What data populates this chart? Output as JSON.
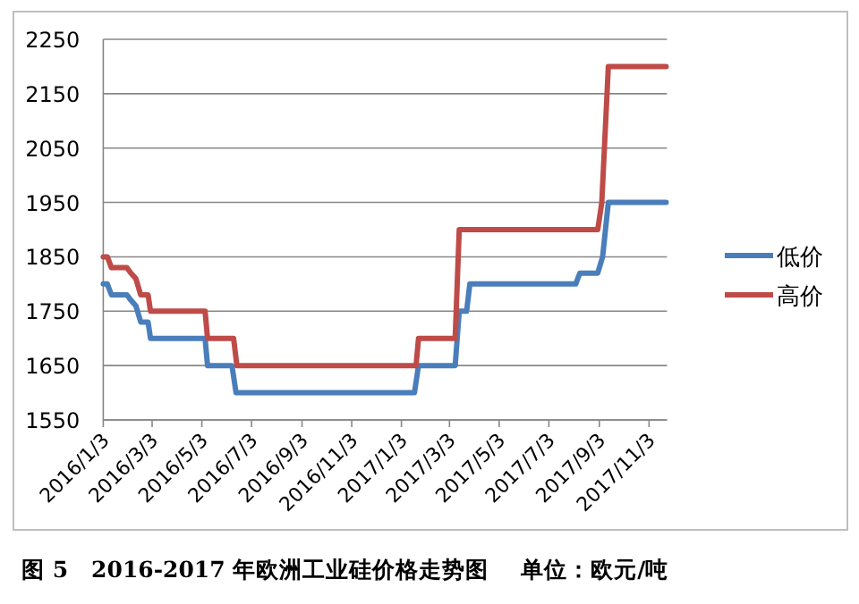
{
  "chart_data": {
    "type": "line",
    "title": "图 5　2016-2017 年欧洲工业硅价格走势图",
    "annotations": [
      "单位：欧元/吨"
    ],
    "xlim": [
      "2016-01-03",
      "2017-11-25"
    ],
    "ylim": [
      1550,
      2250
    ],
    "xticks": [
      {
        "value": "2016-01-03",
        "label": "2016/1/3"
      },
      {
        "value": "2016-03-03",
        "label": "2016/3/3"
      },
      {
        "value": "2016-05-03",
        "label": "2016/5/3"
      },
      {
        "value": "2016-07-03",
        "label": "2016/7/3"
      },
      {
        "value": "2016-09-03",
        "label": "2016/9/3"
      },
      {
        "value": "2016-11-03",
        "label": "2016/11/3"
      },
      {
        "value": "2017-01-03",
        "label": "2017/1/3"
      },
      {
        "value": "2017-03-03",
        "label": "2017/3/3"
      },
      {
        "value": "2017-05-03",
        "label": "2017/5/3"
      },
      {
        "value": "2017-07-03",
        "label": "2017/7/3"
      },
      {
        "value": "2017-09-03",
        "label": "2017/9/3"
      },
      {
        "value": "2017-11-03",
        "label": "2017/11/3"
      }
    ],
    "yticks": [
      1550,
      1650,
      1750,
      1850,
      1950,
      2050,
      2150,
      2250
    ],
    "grid": "y",
    "legend": "right",
    "marker": "none",
    "line_style": "solid",
    "series": [
      {
        "name": "低价",
        "color": "#4a7ebb",
        "x": [
          "2016-01-03",
          "2016-01-08",
          "2016-01-13",
          "2016-02-01",
          "2016-02-06",
          "2016-02-12",
          "2016-02-18",
          "2016-02-27",
          "2016-03-01",
          "2016-05-07",
          "2016-05-10",
          "2016-06-09",
          "2016-06-14",
          "2017-01-19",
          "2017-01-24",
          "2017-03-10",
          "2017-03-15",
          "2017-03-24",
          "2017-03-28",
          "2017-08-05",
          "2017-08-10",
          "2017-09-01",
          "2017-09-07",
          "2017-09-14",
          "2017-11-24"
        ],
        "values": [
          1800,
          1800,
          1780,
          1780,
          1770,
          1760,
          1730,
          1730,
          1700,
          1700,
          1650,
          1650,
          1600,
          1600,
          1650,
          1650,
          1750,
          1750,
          1800,
          1800,
          1820,
          1820,
          1850,
          1950,
          1950
        ]
      },
      {
        "name": "高价",
        "color": "#be4b48",
        "x": [
          "2016-01-03",
          "2016-01-08",
          "2016-01-13",
          "2016-02-01",
          "2016-02-06",
          "2016-02-12",
          "2016-02-18",
          "2016-02-27",
          "2016-03-01",
          "2016-05-07",
          "2016-05-10",
          "2016-06-11",
          "2016-06-15",
          "2017-01-21",
          "2017-01-24",
          "2017-03-10",
          "2017-03-15",
          "2017-09-01",
          "2017-09-06",
          "2017-09-14",
          "2017-11-24"
        ],
        "values": [
          1850,
          1850,
          1830,
          1830,
          1820,
          1810,
          1780,
          1780,
          1750,
          1750,
          1700,
          1700,
          1650,
          1650,
          1700,
          1700,
          1900,
          1900,
          1950,
          2200,
          2200
        ]
      }
    ]
  }
}
